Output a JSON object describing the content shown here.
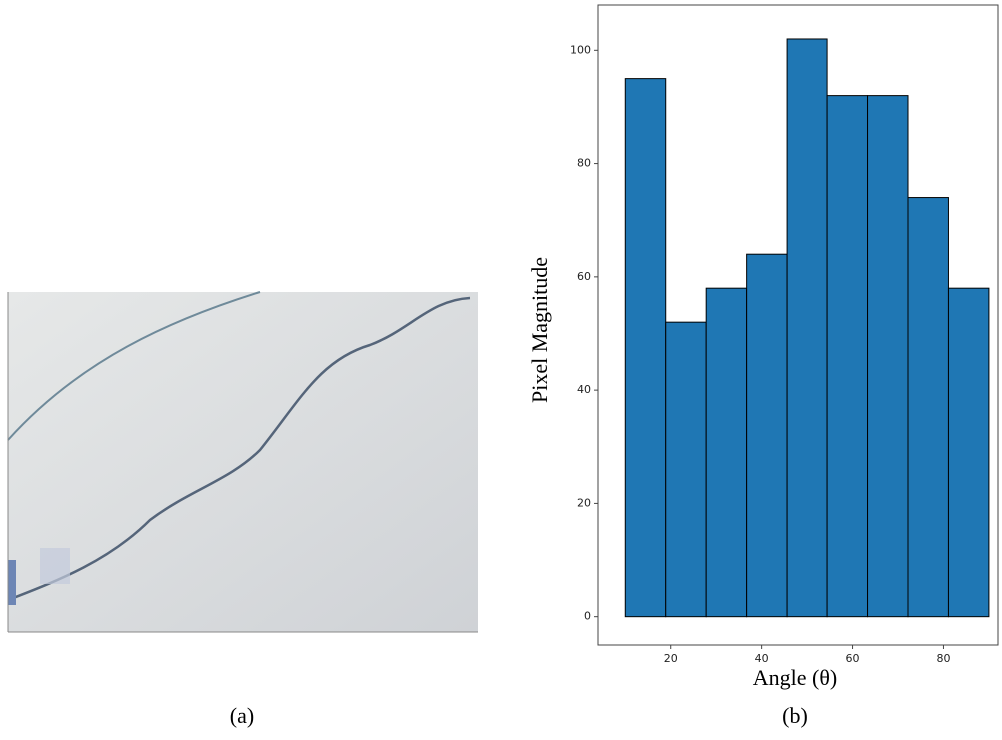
{
  "chart_data": {
    "type": "histogram",
    "xlabel": "Angle (θ)",
    "ylabel": "Pixel Magnitude",
    "bins": [
      10,
      18.9,
      27.8,
      36.7,
      45.6,
      54.4,
      63.3,
      72.2,
      81.1,
      90
    ],
    "values": [
      95,
      52,
      58,
      64,
      102,
      92,
      92,
      74,
      58
    ],
    "color": "#1f77b4",
    "xlim": [
      4,
      92
    ],
    "ylim": [
      -5,
      108
    ],
    "xticks": [
      20,
      40,
      60,
      80
    ],
    "yticks": [
      0,
      20,
      40,
      60,
      80,
      100
    ]
  },
  "figure": {
    "captions": [
      "(a)",
      "(b)"
    ]
  }
}
